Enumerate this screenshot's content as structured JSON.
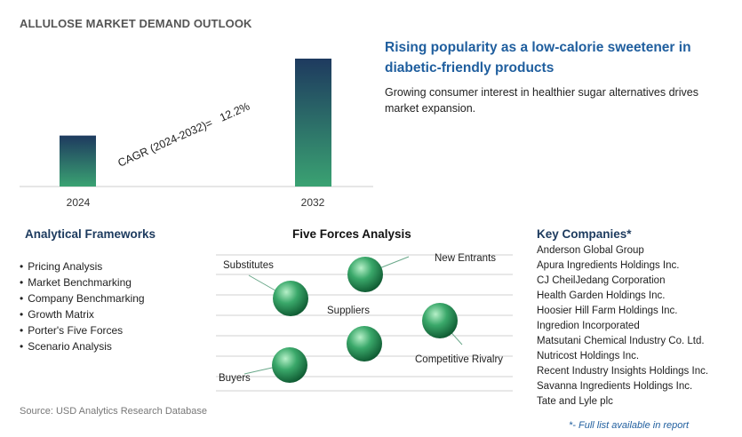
{
  "header": {
    "title": "ALLULOSE MARKET DEMAND OUTLOOK"
  },
  "chart_data": {
    "type": "bar",
    "categories": [
      "2024",
      "2032"
    ],
    "values": [
      1,
      2.51
    ],
    "annotation": "CAGR (2024-2032)=   12.2%",
    "colors": {
      "bar_top": "#1e3a5f",
      "bar_bottom": "#3aa272"
    }
  },
  "insight": {
    "headline": "Rising popularity as a low-calorie sweetener in diabetic-friendly products",
    "text": "Growing consumer interest in healthier sugar alternatives drives market expansion."
  },
  "frameworks": {
    "title": "Analytical Frameworks",
    "items": [
      "Pricing Analysis",
      "Market Benchmarking",
      "Company Benchmarking",
      "Growth Matrix",
      "Porter's Five Forces",
      "Scenario Analysis"
    ]
  },
  "five_forces": {
    "title": "Five Forces Analysis",
    "labels": {
      "new_entrants": "New Entrants",
      "substitutes": "Substitutes",
      "suppliers": "Suppliers",
      "competitive_rivalry": "Competitive Rivalry",
      "buyers": "Buyers"
    },
    "colors": {
      "sphere_light": "#b6f0c8",
      "sphere_mid": "#3aa86a",
      "sphere_dark": "#0f5a32",
      "line": "#d0d0d0"
    }
  },
  "companies": {
    "title": "Key Companies*",
    "items": [
      "Anderson Global Group",
      "Apura Ingredients Holdings Inc.",
      "CJ CheilJedang Corporation",
      "Health Garden Holdings Inc.",
      "Hoosier Hill Farm Holdings Inc.",
      "Ingredion Incorporated",
      "Matsutani Chemical Industry Co. Ltd.",
      "Nutricost Holdings Inc.",
      "Recent Industry Insights Holdings Inc.",
      "Savanna Ingredients Holdings Inc.",
      "Tate and Lyle plc"
    ],
    "note": "*- Full list available in report"
  },
  "source": "Source: USD Analytics Research Database"
}
